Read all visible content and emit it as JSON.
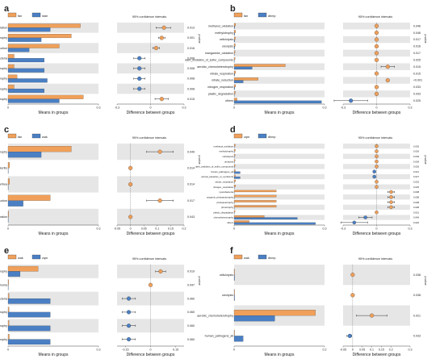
{
  "colors": {
    "orange": "#f0a05a",
    "blue": "#4a7fc4",
    "stripe": "#e6e6e6",
    "axis": "#444444",
    "text": "#222222"
  },
  "chart_data": [
    {
      "panel_label": "a",
      "type": "bar",
      "subtype": "extended-error-bar",
      "legend": [
        "fan",
        "stan"
      ],
      "ci_title": "95% confidence intervals",
      "pvalue_axis_label": "p-value",
      "xlabel_left": "Means in groups",
      "xlabel_right": "Difference between groups",
      "left_xlim": [
        0,
        0.3
      ],
      "left_ticks": [
        "0",
        "0.3"
      ],
      "right_xlim": [
        -0.3,
        0.3
      ],
      "right_ticks": [
        "-0.3",
        "0",
        "0.3"
      ],
      "categories": [
        "fermentation",
        "aerobic_chemoheterotrophy",
        "nitrate_reduction",
        "cyanobacteria",
        "oxygenic_photoautotrophy",
        "phototrophy",
        "photoautotrophy",
        "chemoheterotrophy"
      ],
      "series": [
        {
          "name": "fan",
          "values": [
            0.24,
            0.21,
            0.17,
            0.02,
            0.02,
            0.03,
            0.02,
            0.25
          ]
        },
        {
          "name": "stan",
          "values": [
            0.14,
            0.11,
            0.07,
            0.12,
            0.12,
            0.13,
            0.12,
            0.17
          ]
        }
      ],
      "diff": [
        0.12,
        0.1,
        0.05,
        -0.1,
        -0.1,
        -0.1,
        -0.1,
        0.1
      ],
      "ci_low": [
        0.05,
        0.07,
        0.02,
        -0.15,
        -0.15,
        -0.15,
        -0.15,
        0.04
      ],
      "ci_high": [
        0.18,
        0.13,
        0.08,
        -0.05,
        -0.05,
        -0.05,
        -0.05,
        0.16
      ],
      "pvalues": [
        "0.013",
        "0.001",
        "0.016",
        "0.008",
        "0.008",
        "0.008",
        "0.008",
        "0.015"
      ]
    },
    {
      "panel_label": "b",
      "type": "bar",
      "subtype": "extended-error-bar",
      "legend": [
        "fan",
        "dhmp"
      ],
      "ci_title": "95% confidence intervals",
      "pvalue_axis_label": "p-value",
      "xlabel_left": "Means in groups",
      "xlabel_right": "Difference between groups",
      "left_xlim": [
        0,
        0.3
      ],
      "left_ticks": [
        "0",
        "0.3"
      ],
      "right_xlim": [
        -0.3,
        0.3
      ],
      "right_ticks": [
        "-0.3",
        "0",
        "0.3"
      ],
      "categories": [
        "methanol_oxidation",
        "methylotrophy",
        "cellulolysis",
        "ureolysis",
        "manganese_oxidation",
        "dark_oxidation_of_sulfur_compounds",
        "aerobic_chemoheterotrophy",
        "nitrate_respiration",
        "nitrate_reduction",
        "nitrogen_respiration",
        "plastic_degradation",
        "others"
      ],
      "series": [
        {
          "name": "fan",
          "values": [
            0.005,
            0.005,
            0.004,
            0.004,
            0.003,
            0.003,
            0.17,
            0.005,
            0.08,
            0.005,
            0.004,
            0.01
          ]
        },
        {
          "name": "dhmp",
          "values": [
            0.002,
            0.002,
            0.002,
            0.002,
            0.001,
            0.001,
            0.06,
            0.002,
            0.03,
            0.002,
            0.001,
            0.29
          ]
        }
      ],
      "diff": [
        0.0,
        0.0,
        0.0,
        0.0,
        0.0,
        0.0,
        0.1,
        0.0,
        0.1,
        0.0,
        0.0,
        -0.23
      ],
      "ci_low": [
        -0.005,
        -0.005,
        -0.005,
        -0.005,
        -0.005,
        -0.005,
        0.04,
        -0.005,
        0.09,
        -0.005,
        -0.005,
        -0.38
      ],
      "ci_high": [
        0.005,
        0.005,
        0.005,
        0.005,
        0.005,
        0.005,
        0.16,
        0.005,
        0.11,
        0.005,
        0.005,
        -0.08
      ],
      "pvalues": [
        "0.046",
        "0.046",
        "0.017",
        "0.016",
        "0.017",
        "0.025",
        "0.015",
        "0.015",
        "<0.001",
        "0.033",
        "0.033",
        "0.025"
      ]
    },
    {
      "panel_label": "c",
      "type": "bar",
      "subtype": "extended-error-bar",
      "legend": [
        "fan",
        "wak"
      ],
      "ci_title": "95% confidence intervals",
      "pvalue_axis_label": "p-value",
      "xlabel_left": "Means in groups",
      "xlabel_right": "Difference between groups",
      "left_xlim": [
        0,
        0.3
      ],
      "left_ticks": [
        "0",
        "0.3"
      ],
      "right_xlim": [
        -0.05,
        0.2
      ],
      "right_ticks": [
        "-0.05",
        "0",
        "0.05",
        "0.1",
        "0.15",
        "0.2"
      ],
      "categories": [
        "aerobic_chemoheterotrophy",
        "human_pathogens_gastroenteritis",
        "human_pathogens_diarrhea",
        "nitrate_reduction",
        "fumarate_respiration"
      ],
      "series": [
        {
          "name": "fan",
          "values": [
            0.21,
            0.005,
            0.005,
            0.14,
            0.002
          ]
        },
        {
          "name": "wak",
          "values": [
            0.11,
            0.001,
            0.001,
            0.05,
            0.001
          ]
        }
      ],
      "diff": [
        0.11,
        0.0,
        0.0,
        0.11,
        0.0
      ],
      "ci_low": [
        0.06,
        -0.002,
        -0.002,
        0.06,
        -0.002
      ],
      "ci_high": [
        0.16,
        0.002,
        0.002,
        0.16,
        0.002
      ],
      "pvalues": [
        "0.049",
        "0.014",
        "0.014",
        "0.017",
        "0.043"
      ]
    },
    {
      "panel_label": "d",
      "type": "bar",
      "subtype": "extended-error-bar",
      "legend": [
        "zqm",
        "dhmp"
      ],
      "ci_title": "95% confidence intervals",
      "pvalue_axis_label": "p-value",
      "xlabel_left": "Means in groups",
      "xlabel_right": "Difference between groups",
      "left_xlim": [
        0,
        0.3
      ],
      "left_ticks": [
        "0",
        "0.3"
      ],
      "right_xlim": [
        -0.3,
        0.3
      ],
      "right_ticks": [
        "-0.3",
        "0",
        "0.3"
      ],
      "categories": [
        "methanol_oxidation",
        "methylotrophy",
        "cellulolysis",
        "ureolysis",
        "dark_oxidation_of_sulfur_compounds",
        "human_pathogens_all",
        "animal_parasites_or_symbionts",
        "nitrate_respiration",
        "nitrogen_respiration",
        "cyanobacteria",
        "oxygenic_photoautotrophy",
        "photoautotrophy",
        "phototrophy",
        "plastic_degradation",
        "chemoheterotrophy",
        "others"
      ],
      "series": [
        {
          "name": "zqm",
          "values": [
            0.004,
            0.004,
            0.003,
            0.003,
            0.003,
            0.004,
            0.004,
            0.005,
            0.005,
            0.14,
            0.14,
            0.14,
            0.14,
            0.003,
            0.1,
            0.05
          ]
        },
        {
          "name": "dhmp",
          "values": [
            0.001,
            0.001,
            0.001,
            0.001,
            0.001,
            0.02,
            0.02,
            0.001,
            0.001,
            0.001,
            0.001,
            0.001,
            0.001,
            0.001,
            0.21,
            0.27
          ]
        }
      ],
      "diff": [
        0.0,
        0.0,
        0.0,
        0.0,
        0.0,
        -0.02,
        -0.02,
        0.0,
        0.0,
        0.13,
        0.13,
        0.13,
        0.13,
        0.0,
        -0.1,
        -0.2
      ],
      "ci_low": [
        -0.004,
        -0.004,
        -0.004,
        -0.004,
        -0.004,
        -0.03,
        -0.03,
        -0.004,
        -0.004,
        0.1,
        0.1,
        0.1,
        0.1,
        -0.004,
        -0.16,
        -0.32
      ],
      "ci_high": [
        0.004,
        0.004,
        0.004,
        0.004,
        0.004,
        -0.01,
        -0.01,
        0.004,
        0.004,
        0.16,
        0.16,
        0.16,
        0.16,
        0.004,
        -0.04,
        -0.08
      ],
      "pvalues": [
        "0.026",
        "0.026",
        "0.039",
        "0.039",
        "0.026",
        "0.012",
        "0.027",
        "0.025",
        "0.025",
        "0.008",
        "0.008",
        "0.008",
        "0.008",
        "0.031",
        "0.049",
        "0.020"
      ]
    },
    {
      "panel_label": "e",
      "type": "bar",
      "subtype": "extended-error-bar",
      "legend": [
        "wak",
        "zqm"
      ],
      "ci_title": "95% confidence intervals",
      "pvalue_axis_label": "p-value",
      "xlabel_left": "Means in groups",
      "xlabel_right": "Difference between groups",
      "left_xlim": [
        0,
        0.3
      ],
      "left_ticks": [
        "0",
        "0.3"
      ],
      "right_xlim": [
        -0.2,
        0.2
      ],
      "right_ticks": [
        "-0.15",
        "0",
        "0.15"
      ],
      "categories": [
        "aerobic_chemoheterotrophy",
        "human_pathogens_pneumonia",
        "cyanobacteria",
        "oxygenic_photoautotrophy",
        "photoautotrophy",
        "phototrophy"
      ],
      "series": [
        {
          "name": "wak",
          "values": [
            0.1,
            0.002,
            0.003,
            0.003,
            0.003,
            0.004
          ]
        },
        {
          "name": "zqm",
          "values": [
            0.04,
            0.001,
            0.14,
            0.14,
            0.14,
            0.14
          ]
        }
      ],
      "diff": [
        0.06,
        0.0,
        -0.13,
        -0.13,
        -0.13,
        -0.13
      ],
      "ci_low": [
        0.03,
        -0.002,
        -0.17,
        -0.17,
        -0.17,
        -0.17
      ],
      "ci_high": [
        0.09,
        0.002,
        -0.09,
        -0.09,
        -0.09,
        -0.09
      ],
      "pvalues": [
        "0.019",
        "0.047",
        "0.060",
        "0.060",
        "0.060",
        "0.060"
      ]
    },
    {
      "panel_label": "f",
      "type": "bar",
      "subtype": "extended-error-bar",
      "legend": [
        "wak",
        "dhmp"
      ],
      "ci_title": "95% confidence intervals",
      "pvalue_axis_label": "p-value",
      "xlabel_left": "Means in groups",
      "xlabel_right": "Difference between groups",
      "left_xlim": [
        0,
        0.2
      ],
      "left_ticks": [
        "0",
        "0.2"
      ],
      "right_xlim": [
        -0.05,
        0.3
      ],
      "right_ticks": [
        "-0.05",
        "0",
        "0.05",
        "0.1",
        "0.15",
        "0.2",
        "0.3"
      ],
      "categories": [
        "cellulolysis",
        "ureolysis",
        "aerobic_chemoheterotrophy",
        "human_pathogens_all"
      ],
      "series": [
        {
          "name": "wak",
          "values": [
            0.001,
            0.001,
            0.18,
            0.001
          ]
        },
        {
          "name": "dhmp",
          "values": [
            0.001,
            0.001,
            0.09,
            0.02
          ]
        }
      ],
      "diff": [
        0.0,
        0.0,
        0.1,
        -0.015
      ],
      "ci_low": [
        -0.002,
        -0.002,
        0.02,
        -0.03
      ],
      "ci_high": [
        0.002,
        0.002,
        0.18,
        -0.005
      ],
      "pvalues": [
        "0.038",
        "0.038",
        "0.021",
        "0.033"
      ]
    }
  ]
}
